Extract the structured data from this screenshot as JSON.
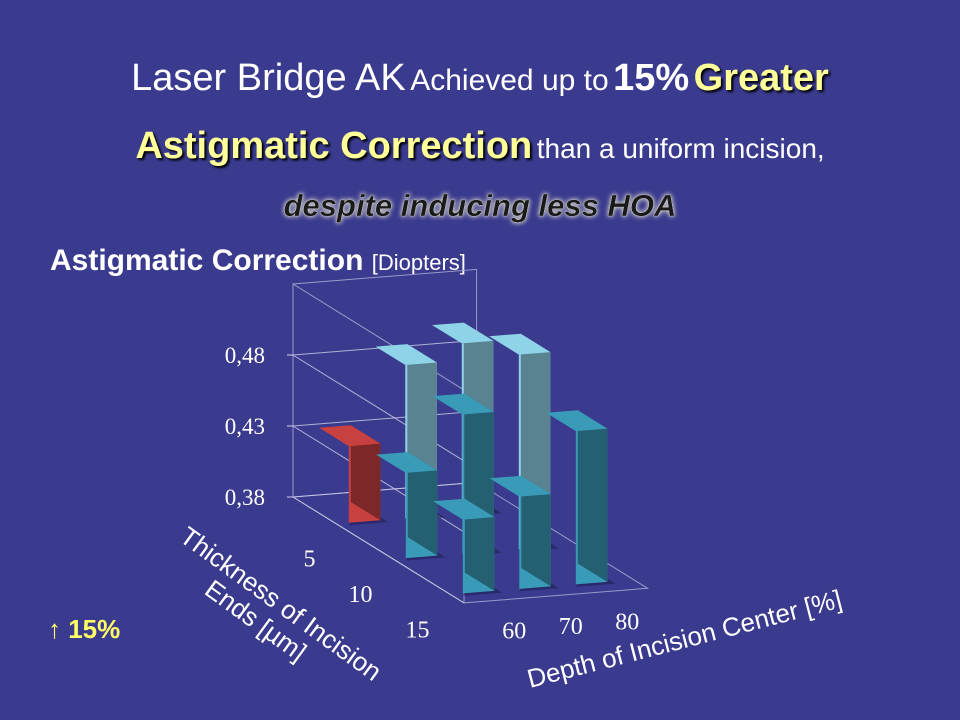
{
  "title": {
    "part1": "Laser Bridge AK",
    "part2": "Achieved up to",
    "part3": "15%",
    "part4": "Greater",
    "part5": "Astigmatic Correction",
    "part6": "than a uniform incision,",
    "part7": "despite inducing less HOA"
  },
  "chart_heading": {
    "label": "Astigmatic Correction",
    "unit": "[Diopters]"
  },
  "footnote": "↑ 15%",
  "chart_data": {
    "type": "bar",
    "subtype": "3d-column",
    "zlabel": "Astigmatic Correction [Diopters]",
    "zticks": [
      "0,38",
      "0,43",
      "0,48"
    ],
    "zlim": [
      0.38,
      0.53
    ],
    "xlabel": "Depth of Incision Center [%]",
    "x_categories": [
      "60",
      "70",
      "80"
    ],
    "ylabel": "Thickness of Incision Ends [µm]",
    "y_categories": [
      "5",
      "10",
      "15"
    ],
    "grid": true,
    "points": [
      {
        "thickness": "5",
        "depth": "60",
        "value": 0.434,
        "color": "#c84040",
        "highlight": true
      },
      {
        "thickness": "5",
        "depth": "70",
        "value": 0.488,
        "color": "#8fd3e8"
      },
      {
        "thickness": "5",
        "depth": "80",
        "value": 0.5,
        "color": "#8fd3e8"
      },
      {
        "thickness": "10",
        "depth": "60",
        "value": 0.44,
        "color": "#3a9bb8"
      },
      {
        "thickness": "10",
        "depth": "70",
        "value": 0.478,
        "color": "#3a9bb8"
      },
      {
        "thickness": "10",
        "depth": "80",
        "value": 0.517,
        "color": "#8fd3e8"
      },
      {
        "thickness": "15",
        "depth": "60",
        "value": 0.432,
        "color": "#3a9bb8"
      },
      {
        "thickness": "15",
        "depth": "70",
        "value": 0.445,
        "color": "#3a9bb8"
      },
      {
        "thickness": "15",
        "depth": "80",
        "value": 0.488,
        "color": "#3a9bb8"
      }
    ]
  }
}
